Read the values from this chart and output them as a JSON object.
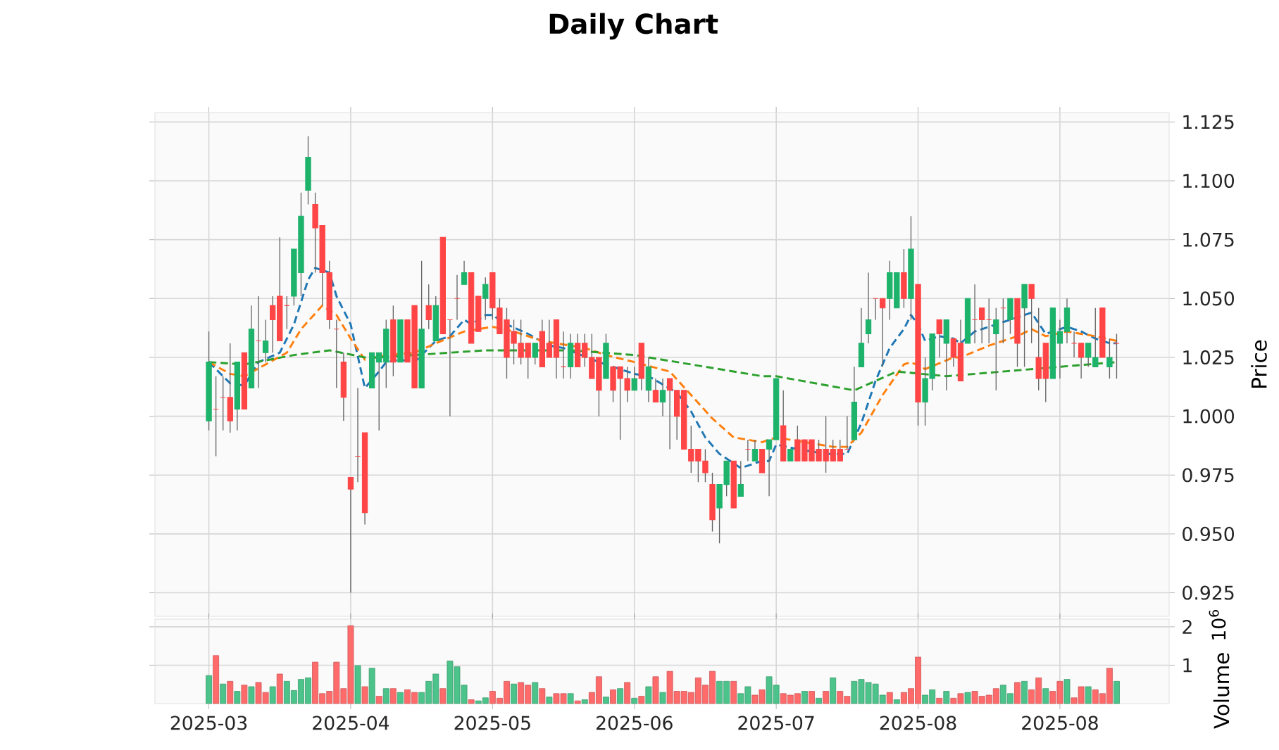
{
  "chart_data": [
    {
      "type": "candlestick",
      "title": "Daily Chart",
      "ylabel": "Price",
      "categories": [
        "2025-03",
        null,
        null,
        null,
        null,
        null,
        null,
        null,
        null,
        null,
        null,
        null,
        null,
        null,
        null,
        null,
        null,
        null,
        null,
        null,
        "2025-04",
        null,
        null,
        null,
        null,
        null,
        null,
        null,
        null,
        null,
        null,
        null,
        null,
        null,
        null,
        null,
        null,
        null,
        null,
        null,
        "2025-05",
        null,
        null,
        null,
        null,
        null,
        null,
        null,
        null,
        null,
        null,
        null,
        null,
        null,
        null,
        null,
        null,
        null,
        null,
        null,
        "2025-06",
        null,
        null,
        null,
        null,
        null,
        null,
        null,
        null,
        null,
        null,
        null,
        null,
        null,
        null,
        null,
        null,
        null,
        null,
        null,
        "2025-07",
        null,
        null,
        null,
        null,
        null,
        null,
        null,
        null,
        null,
        null,
        null,
        null,
        null,
        null,
        null,
        null,
        null,
        null,
        null,
        "2025-08",
        null,
        null,
        null,
        null,
        null,
        null,
        null,
        null,
        null,
        null,
        null,
        null,
        null,
        null,
        null,
        null,
        null,
        null,
        null,
        "2025-08",
        null,
        null,
        null,
        null,
        null,
        null,
        null,
        null
      ],
      "ylim": [
        0.915,
        1.129
      ],
      "yticks": [
        {
          "value": 0.925,
          "label": "0.925"
        },
        {
          "value": 0.95,
          "label": "0.950"
        },
        {
          "value": 0.975,
          "label": "0.975"
        },
        {
          "value": 1.0,
          "label": "1.000"
        },
        {
          "value": 1.025,
          "label": "1.025"
        },
        {
          "value": 1.05,
          "label": "1.050"
        },
        {
          "value": 1.075,
          "label": "1.075"
        },
        {
          "value": 1.1,
          "label": "1.100"
        },
        {
          "value": 1.125,
          "label": "1.125"
        }
      ],
      "grid": true,
      "tick_labels": "y",
      "series": [
        {
          "type": "line",
          "color": "#1f77b4",
          "line_style": "dashed",
          "values": [
            1.023,
            null,
            null,
            1.014,
            null,
            1.013,
            null,
            1.023,
            null,
            null,
            1.027,
            null,
            1.039,
            null,
            1.058,
            1.063,
            null,
            1.061,
            1.051,
            null,
            1.039,
            null,
            1.012,
            null,
            1.019,
            1.023,
            null,
            1.024,
            null,
            1.023,
            null,
            null,
            1.032,
            null,
            1.034,
            null,
            1.041,
            1.039,
            null,
            1.043,
            1.043,
            null,
            1.039,
            null,
            null,
            1.035,
            null,
            null,
            1.03,
            null,
            1.029,
            null,
            null,
            null,
            null,
            1.023,
            null,
            null,
            null,
            null,
            1.018,
            null,
            1.017,
            null,
            null,
            null,
            1.01,
            null,
            1.002,
            null,
            0.991,
            null,
            0.984,
            null,
            0.98,
            0.978,
            null,
            null,
            0.981,
            0.981,
            0.988,
            null,
            null,
            0.986,
            null,
            null,
            null,
            0.984,
            null,
            null,
            0.984,
            null,
            0.997,
            null,
            1.015,
            null,
            1.029,
            null,
            1.037,
            1.043,
            1.039,
            1.032,
            null,
            1.034,
            null,
            1.033,
            1.031,
            null,
            1.036,
            null,
            null,
            1.039,
            null,
            1.041,
            null,
            null,
            1.044,
            null,
            1.035,
            null,
            1.037,
            1.038,
            null,
            1.036,
            null,
            1.033,
            null,
            1.031,
            1.031
          ]
        },
        {
          "type": "line",
          "color": "#ff7f0e",
          "line_style": "dashed",
          "values": [
            1.023,
            null,
            null,
            1.018,
            null,
            1.017,
            null,
            null,
            1.022,
            null,
            null,
            1.027,
            null,
            1.037,
            null,
            null,
            1.047,
            null,
            1.043,
            null,
            1.033,
            null,
            1.024,
            null,
            null,
            1.026,
            null,
            null,
            null,
            1.027,
            null,
            null,
            1.031,
            null,
            null,
            null,
            1.036,
            null,
            null,
            null,
            1.038,
            null,
            null,
            1.036,
            null,
            null,
            null,
            1.032,
            null,
            null,
            null,
            1.03,
            null,
            1.029,
            null,
            null,
            1.026,
            null,
            null,
            null,
            1.023,
            null,
            null,
            null,
            null,
            1.019,
            null,
            null,
            1.009,
            null,
            null,
            0.999,
            null,
            null,
            0.991,
            null,
            null,
            null,
            0.989,
            null,
            0.991,
            null,
            null,
            null,
            0.989,
            null,
            null,
            null,
            0.987,
            null,
            0.987,
            null,
            0.993,
            null,
            null,
            1.009,
            null,
            null,
            1.022,
            1.023,
            null,
            1.02,
            null,
            null,
            null,
            1.025,
            1.025,
            null,
            null,
            null,
            1.03,
            null,
            null,
            null,
            1.034,
            null,
            1.037,
            null,
            1.034,
            null,
            null,
            1.036,
            null,
            null,
            null,
            1.034,
            null,
            null,
            1.032
          ]
        },
        {
          "type": "line",
          "color": "#2ca02c",
          "line_style": "dashed",
          "values": [
            1.023,
            null,
            null,
            null,
            null,
            1.022,
            null,
            null,
            null,
            null,
            null,
            null,
            1.026,
            null,
            null,
            null,
            null,
            1.028,
            null,
            null,
            null,
            null,
            1.025,
            null,
            1.025,
            null,
            null,
            null,
            null,
            1.026,
            null,
            null,
            null,
            null,
            null,
            null,
            null,
            null,
            null,
            1.028,
            null,
            null,
            null,
            null,
            null,
            1.028,
            null,
            null,
            null,
            null,
            null,
            1.028,
            null,
            null,
            null,
            null,
            null,
            null,
            null,
            null,
            1.026,
            null,
            null,
            null,
            null,
            null,
            null,
            null,
            1.022,
            null,
            null,
            null,
            null,
            null,
            null,
            null,
            null,
            null,
            1.017,
            null,
            1.017,
            null,
            null,
            null,
            null,
            null,
            null,
            null,
            null,
            null,
            null,
            1.011,
            null,
            null,
            null,
            null,
            null,
            1.019,
            null,
            null,
            null,
            null,
            null,
            null,
            1.017,
            null,
            null,
            null,
            null,
            null,
            null,
            null,
            null,
            null,
            null,
            null,
            1.02,
            null,
            null,
            null,
            null,
            null,
            null,
            null,
            null,
            null,
            null,
            null,
            1.023
          ]
        },
        {
          "type": "candlestick",
          "colors": [
            "#1db36b",
            "#ff4545",
            "#ff4545",
            "#ff4545",
            "#1db36b",
            "#ff4545",
            "#1db36b",
            "#ff4545",
            "#1db36b",
            "#ff4545",
            "#ff4545",
            "#ff4545",
            "#1db36b",
            "#1db36b",
            "#1db36b",
            "#ff4545",
            "#ff4545",
            "#ff4545",
            "#ff4545",
            "#ff4545",
            "#ff4545",
            "#ff4545",
            "#ff4545",
            "#1db36b",
            "#1db36b",
            "#1db36b",
            "#ff4545",
            "#1db36b",
            "#ff4545",
            "#ff4545",
            "#1db36b",
            "#ff4545",
            "#1db36b",
            "#ff4545",
            "#ff4545",
            "#ff4545",
            "#1db36b",
            "#ff4545",
            "#ff4545",
            "#1db36b",
            "#ff4545",
            "#ff4545",
            "#ff4545",
            "#ff4545",
            "#ff4545",
            "#ff4545",
            "#1db36b",
            "#ff4545",
            "#ff4545",
            "#ff4545",
            "#ff4545",
            "#1db36b",
            "#ff4545",
            "#ff4545",
            "#ff4545",
            "#ff4545",
            "#1db36b",
            "#ff4545",
            "#ff4545",
            "#ff4545",
            "#1db36b",
            "#ff4545",
            "#1db36b",
            "#ff4545",
            "#1db36b",
            "#ff4545",
            "#ff4545",
            "#ff4545",
            "#ff4545",
            "#ff4545",
            "#ff4545",
            "#ff4545",
            "#1db36b",
            "#1db36b",
            "#ff4545",
            "#1db36b",
            "#ff4545",
            "#1db36b",
            "#ff4545",
            "#1db36b",
            "#1db36b",
            "#ff4545",
            "#1db36b",
            "#ff4545",
            "#ff4545",
            "#ff4545",
            "#ff4545",
            "#ff4545",
            "#ff4545",
            "#ff4545",
            "#ff4545",
            "#1db36b",
            "#1db36b",
            "#1db36b",
            "#ff4545",
            "#ff4545",
            "#1db36b",
            "#1db36b",
            "#ff4545",
            "#1db36b",
            "#ff4545",
            "#1db36b",
            "#1db36b",
            "#ff4545",
            "#1db36b",
            "#ff4545",
            "#ff4545",
            "#1db36b",
            "#ff4545",
            "#ff4545",
            "#ff4545",
            "#1db36b",
            "#ff4545",
            "#1db36b",
            "#ff4545",
            "#1db36b",
            "#ff4545",
            "#ff4545",
            "#ff4545",
            "#1db36b",
            "#1db36b",
            "#1db36b",
            "#ff4545",
            "#ff4545",
            "#1db36b",
            "#1db36b",
            "#ff4545",
            "#1db36b",
            "#ff4545"
          ],
          "ohlc": [
            [
              0.998,
              1.036,
              0.994,
              1.023
            ],
            [
              1.003,
              1.017,
              0.983,
              1.003
            ],
            [
              1.008,
              1.017,
              0.994,
              1.008
            ],
            [
              1.008,
              1.031,
              0.993,
              0.998
            ],
            [
              1.003,
              1.023,
              0.994,
              1.023
            ],
            [
              1.027,
              1.027,
              1.003,
              1.003
            ],
            [
              1.012,
              1.047,
              1.012,
              1.037
            ],
            [
              1.032,
              1.051,
              1.012,
              1.032
            ],
            [
              1.027,
              1.041,
              1.023,
              1.032
            ],
            [
              1.047,
              1.051,
              1.027,
              1.041
            ],
            [
              1.051,
              1.076,
              1.032,
              1.032
            ],
            [
              1.047,
              1.051,
              1.037,
              1.047
            ],
            [
              1.051,
              1.071,
              1.047,
              1.071
            ],
            [
              1.061,
              1.095,
              1.051,
              1.085
            ],
            [
              1.096,
              1.119,
              1.09,
              1.11
            ],
            [
              1.09,
              1.095,
              1.061,
              1.08
            ],
            [
              1.081,
              1.081,
              1.047,
              1.061
            ],
            [
              1.061,
              1.066,
              1.037,
              1.041
            ],
            [
              1.037,
              1.041,
              1.012,
              1.037
            ],
            [
              1.023,
              1.027,
              0.998,
              1.008
            ],
            [
              0.974,
              0.974,
              0.925,
              0.969
            ],
            [
              0.983,
              1.012,
              0.972,
              0.983
            ],
            [
              0.993,
              0.993,
              0.954,
              0.959
            ],
            [
              1.012,
              1.027,
              1.012,
              1.027
            ],
            [
              1.023,
              1.027,
              0.994,
              1.027
            ],
            [
              1.023,
              1.041,
              1.012,
              1.037
            ],
            [
              1.041,
              1.047,
              1.017,
              1.023
            ],
            [
              1.023,
              1.041,
              1.023,
              1.041
            ],
            [
              1.041,
              1.041,
              1.023,
              1.023
            ],
            [
              1.047,
              1.047,
              1.012,
              1.012
            ],
            [
              1.012,
              1.066,
              1.012,
              1.037
            ],
            [
              1.047,
              1.056,
              1.037,
              1.041
            ],
            [
              1.032,
              1.051,
              1.032,
              1.047
            ],
            [
              1.076,
              1.076,
              1.035,
              1.035
            ],
            [
              1.041,
              1.041,
              1.0,
              1.041
            ],
            [
              1.05,
              1.06,
              1.041,
              1.05
            ],
            [
              1.056,
              1.066,
              1.056,
              1.061
            ],
            [
              1.061,
              1.061,
              1.031,
              1.031
            ],
            [
              1.051,
              1.051,
              1.036,
              1.036
            ],
            [
              1.05,
              1.059,
              1.041,
              1.056
            ],
            [
              1.061,
              1.061,
              1.041,
              1.046
            ],
            [
              1.046,
              1.05,
              1.035,
              1.035
            ],
            [
              1.041,
              1.046,
              1.016,
              1.025
            ],
            [
              1.036,
              1.041,
              1.022,
              1.031
            ],
            [
              1.031,
              1.041,
              1.022,
              1.025
            ],
            [
              1.031,
              1.031,
              1.016,
              1.025
            ],
            [
              1.025,
              1.031,
              1.022,
              1.031
            ],
            [
              1.036,
              1.041,
              1.021,
              1.021
            ],
            [
              1.031,
              1.041,
              1.025,
              1.025
            ],
            [
              1.041,
              1.041,
              1.016,
              1.025
            ],
            [
              1.021,
              1.036,
              1.016,
              1.021
            ],
            [
              1.021,
              1.035,
              1.016,
              1.031
            ],
            [
              1.031,
              1.035,
              1.021,
              1.021
            ],
            [
              1.031,
              1.035,
              1.021,
              1.025
            ],
            [
              1.025,
              1.035,
              1.016,
              1.016
            ],
            [
              1.025,
              1.025,
              1.0,
              1.011
            ],
            [
              1.016,
              1.035,
              1.016,
              1.031
            ],
            [
              1.021,
              1.021,
              1.006,
              1.011
            ],
            [
              1.021,
              1.021,
              0.99,
              1.016
            ],
            [
              1.016,
              1.021,
              1.006,
              1.011
            ],
            [
              1.011,
              1.021,
              1.011,
              1.016
            ],
            [
              1.031,
              1.031,
              1.011,
              1.016
            ],
            [
              1.011,
              1.025,
              1.006,
              1.021
            ],
            [
              1.011,
              1.016,
              1.006,
              1.006
            ],
            [
              1.006,
              1.016,
              1.0,
              1.011
            ],
            [
              1.016,
              1.016,
              0.986,
              1.011
            ],
            [
              1.011,
              1.011,
              0.99,
              1.0
            ],
            [
              1.011,
              1.011,
              0.986,
              0.986
            ],
            [
              0.986,
              0.996,
              0.976,
              0.981
            ],
            [
              0.986,
              0.986,
              0.972,
              0.981
            ],
            [
              0.981,
              0.986,
              0.972,
              0.976
            ],
            [
              0.971,
              0.976,
              0.951,
              0.956
            ],
            [
              0.961,
              0.971,
              0.946,
              0.971
            ],
            [
              0.971,
              0.981,
              0.966,
              0.981
            ],
            [
              0.981,
              0.981,
              0.961,
              0.961
            ],
            [
              0.966,
              0.981,
              0.966,
              0.971
            ],
            [
              0.986,
              0.99,
              0.981,
              0.986
            ],
            [
              0.981,
              0.99,
              0.981,
              0.986
            ],
            [
              0.986,
              0.986,
              0.976,
              0.976
            ],
            [
              0.986,
              0.99,
              0.966,
              0.99
            ],
            [
              0.99,
              1.016,
              0.99,
              1.016
            ],
            [
              0.996,
              1.011,
              0.981,
              0.981
            ],
            [
              0.981,
              0.986,
              0.981,
              0.986
            ],
            [
              0.99,
              0.996,
              0.981,
              0.981
            ],
            [
              0.99,
              0.99,
              0.981,
              0.981
            ],
            [
              0.99,
              0.99,
              0.981,
              0.981
            ],
            [
              0.986,
              0.99,
              0.981,
              0.981
            ],
            [
              0.986,
              1.0,
              0.976,
              0.981
            ],
            [
              0.986,
              0.99,
              0.981,
              0.981
            ],
            [
              0.986,
              0.99,
              0.981,
              0.981
            ],
            [
              0.986,
              1.0,
              0.986,
              0.986
            ],
            [
              0.99,
              1.021,
              0.99,
              1.006
            ],
            [
              1.021,
              1.046,
              1.021,
              1.031
            ],
            [
              1.035,
              1.061,
              1.031,
              1.041
            ],
            [
              1.05,
              1.05,
              1.041,
              1.05
            ],
            [
              1.05,
              1.05,
              1.021,
              1.046
            ],
            [
              1.05,
              1.066,
              1.041,
              1.061
            ],
            [
              1.046,
              1.061,
              1.046,
              1.061
            ],
            [
              1.061,
              1.071,
              1.046,
              1.05
            ],
            [
              1.05,
              1.085,
              1.041,
              1.071
            ],
            [
              1.056,
              1.056,
              0.996,
              1.006
            ],
            [
              1.006,
              1.025,
              0.996,
              1.016
            ],
            [
              1.016,
              1.035,
              1.011,
              1.035
            ],
            [
              1.041,
              1.041,
              1.025,
              1.035
            ],
            [
              1.031,
              1.041,
              1.011,
              1.041
            ],
            [
              1.033,
              1.033,
              1.021,
              1.025
            ],
            [
              1.031,
              1.041,
              1.015,
              1.015
            ],
            [
              1.031,
              1.05,
              1.031,
              1.05
            ],
            [
              1.041,
              1.056,
              1.031,
              1.041
            ],
            [
              1.046,
              1.046,
              1.031,
              1.041
            ],
            [
              1.041,
              1.05,
              1.031,
              1.041
            ],
            [
              1.035,
              1.046,
              1.011,
              1.041
            ],
            [
              1.046,
              1.05,
              1.031,
              1.046
            ],
            [
              1.041,
              1.05,
              1.035,
              1.05
            ],
            [
              1.05,
              1.05,
              1.021,
              1.031
            ],
            [
              1.046,
              1.056,
              1.021,
              1.056
            ],
            [
              1.056,
              1.056,
              1.031,
              1.05
            ],
            [
              1.025,
              1.046,
              1.011,
              1.016
            ],
            [
              1.031,
              1.031,
              1.006,
              1.016
            ],
            [
              1.016,
              1.046,
              1.016,
              1.046
            ],
            [
              1.031,
              1.041,
              1.016,
              1.036
            ],
            [
              1.036,
              1.05,
              1.031,
              1.046
            ],
            [
              1.031,
              1.036,
              1.025,
              1.031
            ],
            [
              1.031,
              1.031,
              1.016,
              1.025
            ],
            [
              1.025,
              1.031,
              1.021,
              1.031
            ],
            [
              1.021,
              1.046,
              1.021,
              1.025
            ],
            [
              1.046,
              1.046,
              1.025,
              1.025
            ],
            [
              1.021,
              1.033,
              1.016,
              1.025
            ],
            [
              1.031,
              1.035,
              1.016,
              1.031
            ]
          ]
        }
      ]
    },
    {
      "type": "bar",
      "ylabel": "Volume",
      "annotations": [
        "10$^{6}$"
      ],
      "categories": [
        "2025-03",
        null,
        null,
        null,
        null,
        null,
        null,
        null,
        null,
        null,
        null,
        null,
        null,
        null,
        null,
        null,
        null,
        null,
        null,
        null,
        "2025-04",
        null,
        null,
        null,
        null,
        null,
        null,
        null,
        null,
        null,
        null,
        null,
        null,
        null,
        null,
        null,
        null,
        null,
        null,
        null,
        "2025-05",
        null,
        null,
        null,
        null,
        null,
        null,
        null,
        null,
        null,
        null,
        null,
        null,
        null,
        null,
        null,
        null,
        null,
        null,
        null,
        "2025-06",
        null,
        null,
        null,
        null,
        null,
        null,
        null,
        null,
        null,
        null,
        null,
        null,
        null,
        null,
        null,
        null,
        null,
        null,
        null,
        "2025-07",
        null,
        null,
        null,
        null,
        null,
        null,
        null,
        null,
        null,
        null,
        null,
        null,
        null,
        null,
        null,
        null,
        null,
        null,
        null,
        "2025-08",
        null,
        null,
        null,
        null,
        null,
        null,
        null,
        null,
        null,
        null,
        null,
        null,
        null,
        null,
        null,
        null,
        null,
        null,
        null,
        "2025-08",
        null,
        null,
        null,
        null,
        null,
        null,
        null,
        null
      ],
      "ylim": [
        0,
        2.2
      ],
      "yticks": [
        1,
        2
      ],
      "grid": true,
      "series": [
        {
          "values": [
            0.73,
            1.25,
            0.51,
            0.58,
            0.32,
            0.48,
            0.44,
            0.55,
            0.29,
            0.44,
            0.77,
            0.58,
            0.34,
            0.63,
            0.67,
            1.08,
            0.26,
            0.32,
            1.08,
            0.39,
            2.03,
            0.99,
            0.44,
            0.92,
            0.19,
            0.39,
            0.39,
            0.29,
            0.36,
            0.29,
            0.29,
            0.58,
            0.77,
            0.39,
            1.11,
            0.96,
            0.48,
            0.1,
            0.07,
            0.15,
            0.32,
            0.14,
            0.58,
            0.51,
            0.55,
            0.48,
            0.55,
            0.39,
            0.17,
            0.26,
            0.26,
            0.26,
            0.07,
            0.1,
            0.29,
            0.7,
            0.17,
            0.36,
            0.39,
            0.55,
            0.14,
            0.19,
            0.44,
            0.7,
            0.29,
            0.84,
            0.32,
            0.32,
            0.29,
            0.67,
            0.48,
            0.84,
            0.58,
            0.58,
            0.58,
            0.26,
            0.44,
            0.22,
            0.36,
            0.7,
            0.48,
            0.26,
            0.22,
            0.26,
            0.32,
            0.32,
            0.14,
            0.32,
            0.67,
            0.32,
            0.19,
            0.58,
            0.63,
            0.55,
            0.51,
            0.22,
            0.29,
            0.1,
            0.29,
            0.39,
            1.21,
            0.22,
            0.36,
            0.14,
            0.32,
            0.14,
            0.26,
            0.29,
            0.32,
            0.19,
            0.22,
            0.39,
            0.48,
            0.26,
            0.55,
            0.58,
            0.36,
            0.67,
            0.39,
            0.32,
            0.58,
            0.63,
            0.15,
            0.44,
            0.44,
            0.36,
            0.26,
            0.92,
            0.58
          ],
          "colors": [
            "#4cc38a",
            "#ff6b6b",
            "#4cc38a",
            "#ff6b6b",
            "#4cc38a",
            "#ff6b6b",
            "#4cc38a",
            "#ff6b6b",
            "#ff6b6b",
            "#4cc38a",
            "#ff6b6b",
            "#4cc38a",
            "#4cc38a",
            "#4cc38a",
            "#4cc38a",
            "#ff6b6b",
            "#ff6b6b",
            "#ff6b6b",
            "#ff6b6b",
            "#ff6b6b",
            "#ff6b6b",
            "#4cc38a",
            "#ff6b6b",
            "#4cc38a",
            "#ff6b6b",
            "#4cc38a",
            "#ff6b6b",
            "#4cc38a",
            "#ff6b6b",
            "#ff6b6b",
            "#4cc38a",
            "#4cc38a",
            "#4cc38a",
            "#ff6b6b",
            "#4cc38a",
            "#4cc38a",
            "#4cc38a",
            "#ff6b6b",
            "#4cc38a",
            "#4cc38a",
            "#ff6b6b",
            "#ff6b6b",
            "#ff6b6b",
            "#4cc38a",
            "#ff6b6b",
            "#ff6b6b",
            "#4cc38a",
            "#ff6b6b",
            "#4cc38a",
            "#ff6b6b",
            "#ff6b6b",
            "#4cc38a",
            "#ff6b6b",
            "#4cc38a",
            "#ff6b6b",
            "#ff6b6b",
            "#4cc38a",
            "#ff6b6b",
            "#4cc38a",
            "#ff6b6b",
            "#4cc38a",
            "#ff6b6b",
            "#4cc38a",
            "#ff6b6b",
            "#4cc38a",
            "#ff6b6b",
            "#ff6b6b",
            "#ff6b6b",
            "#ff6b6b",
            "#ff6b6b",
            "#ff6b6b",
            "#ff6b6b",
            "#4cc38a",
            "#4cc38a",
            "#ff6b6b",
            "#4cc38a",
            "#4cc38a",
            "#ff6b6b",
            "#ff6b6b",
            "#4cc38a",
            "#4cc38a",
            "#ff6b6b",
            "#ff6b6b",
            "#ff6b6b",
            "#4cc38a",
            "#ff6b6b",
            "#4cc38a",
            "#ff6b6b",
            "#4cc38a",
            "#ff6b6b",
            "#ff6b6b",
            "#4cc38a",
            "#4cc38a",
            "#4cc38a",
            "#4cc38a",
            "#4cc38a",
            "#ff6b6b",
            "#4cc38a",
            "#ff6b6b",
            "#ff6b6b",
            "#ff6b6b",
            "#4cc38a",
            "#4cc38a",
            "#ff6b6b",
            "#4cc38a",
            "#ff6b6b",
            "#ff6b6b",
            "#4cc38a",
            "#ff6b6b",
            "#ff6b6b",
            "#ff6b6b",
            "#ff6b6b",
            "#4cc38a",
            "#4cc38a",
            "#ff6b6b",
            "#4cc38a",
            "#ff6b6b",
            "#ff6b6b",
            "#4cc38a",
            "#ff6b6b",
            "#ff6b6b",
            "#4cc38a",
            "#ff6b6b",
            "#ff6b6b",
            "#4cc38a",
            "#ff6b6b",
            "#ff6b6b",
            "#ff6b6b",
            "#4cc38a"
          ]
        }
      ]
    }
  ]
}
